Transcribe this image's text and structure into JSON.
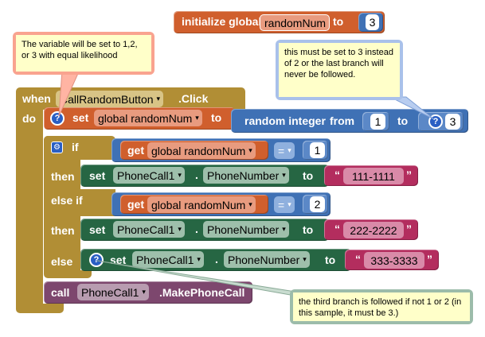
{
  "init_block": {
    "label": "initialize global",
    "var_name": "randomNum",
    "to": "to",
    "value": "3"
  },
  "event_block": {
    "when": "when",
    "component": "CallRandomButton",
    "event": ".Click",
    "do": "do"
  },
  "set_var_block": {
    "set": "set",
    "var": "global randomNum",
    "to": "to"
  },
  "random_block": {
    "label": "random integer",
    "from": "from",
    "from_val": "1",
    "to": "to",
    "to_val": "3"
  },
  "if_block": {
    "if": "if",
    "then": "then",
    "else_if": "else if",
    "else": "else"
  },
  "cond1": {
    "get": "get",
    "var": "global randomNum",
    "op": "=",
    "value": "1"
  },
  "cond2": {
    "get": "get",
    "var": "global randomNum",
    "op": "=",
    "value": "2"
  },
  "branch1": {
    "set": "set",
    "component": "PhoneCall1",
    "dot": ".",
    "prop": "PhoneNumber",
    "to": "to",
    "quote_open": "“",
    "value": "111-1111",
    "quote_close": "”"
  },
  "branch2": {
    "set": "set",
    "component": "PhoneCall1",
    "dot": ".",
    "prop": "PhoneNumber",
    "to": "to",
    "quote_open": "“",
    "value": "222-2222",
    "quote_close": "”"
  },
  "branch3": {
    "set": "set",
    "component": "PhoneCall1",
    "dot": ".",
    "prop": "PhoneNumber",
    "to": "to",
    "quote_open": "“",
    "value": "333-3333",
    "quote_close": "”"
  },
  "call_block": {
    "call": "call",
    "component": "PhoneCall1",
    "method": ".MakePhoneCall"
  },
  "comments": {
    "comment1": "The variable will be set to 1,2, or 3 with equal likelihood",
    "comment2": "this must be set to 3 instead of 2 or the last branch will never be followed.",
    "comment3": "the third branch is followed if not 1 or 2 (in this sample, it must be 3.)"
  },
  "icons": {
    "question": "?",
    "gear": "⚙",
    "dropdown": "▾"
  },
  "colors": {
    "event_brown": "#b18e35",
    "variable_orange": "#d05f2d",
    "math_blue": "#3f71b5",
    "control_brown": "#b18e35",
    "component_green": "#266643",
    "text_magenta": "#b32d5e",
    "call_purple": "#7d476e",
    "comment_yellow": "#ffffc9"
  }
}
